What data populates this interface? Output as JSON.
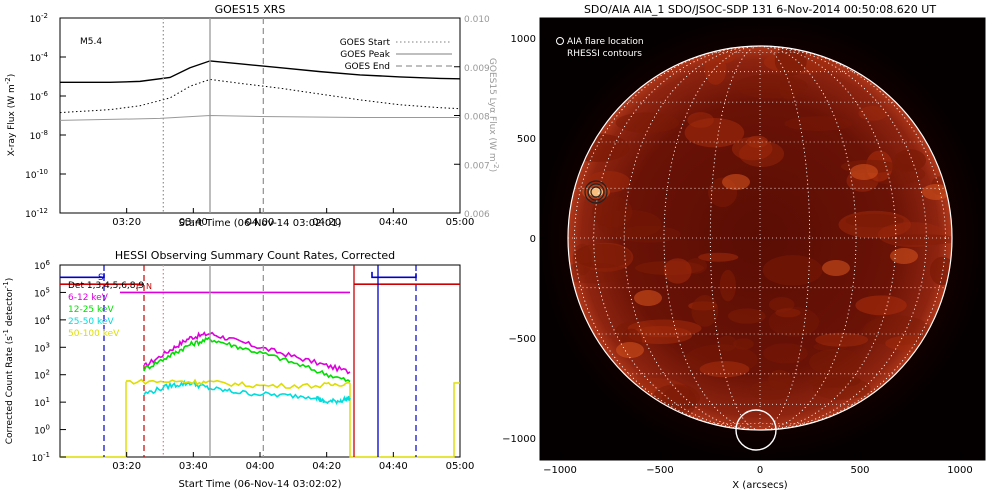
{
  "chart_data": [
    {
      "type": "line",
      "title": "GOES15 XRS",
      "xlabel": "Start Time (06-Nov-14 03:02:01)",
      "ylabel": "X-ray Flux (W m",
      "ylabel_sup": "-2",
      "ylabel_close": ")",
      "ylabel_right": "GOES15 Lyα Flux (W m",
      "ylabel_right_sup": "-2",
      "ylabel_right_close": ")",
      "x_ticks": [
        "03:20",
        "03:40",
        "04:00",
        "04:20",
        "04:40",
        "05:00"
      ],
      "y_ticks_left": [
        {
          "base": "10",
          "exp": "-2"
        },
        {
          "base": "10",
          "exp": "-4"
        },
        {
          "base": "10",
          "exp": "-6"
        },
        {
          "base": "10",
          "exp": "-8"
        },
        {
          "base": "10",
          "exp": "-10"
        },
        {
          "base": "10",
          "exp": "-12"
        }
      ],
      "y_ticks_right": [
        "0.010",
        "0.009",
        "0.008",
        "0.007",
        "0.006"
      ],
      "annotation": "M5.4",
      "legend": [
        {
          "label": "GOES Start",
          "color": "#999999",
          "style": "dotted"
        },
        {
          "label": "GOES Peak",
          "color": "#999999",
          "style": "solid"
        },
        {
          "label": "GOES End",
          "color": "#999999",
          "style": "dashed"
        }
      ],
      "markers": {
        "start": "03:31",
        "peak": "03:45",
        "end": "04:01"
      },
      "series": [
        {
          "color": "#000000",
          "style": "solid",
          "x": [
            3.0,
            3.25,
            3.4,
            3.55,
            3.65,
            3.75,
            3.9,
            4.1,
            4.3,
            4.5,
            4.7,
            4.9,
            5.0
          ],
          "y": [
            -5.3,
            -5.3,
            -5.25,
            -5.05,
            -4.55,
            -4.2,
            -4.35,
            -4.55,
            -4.75,
            -4.92,
            -5.02,
            -5.1,
            -5.12
          ]
        },
        {
          "color": "#000000",
          "style": "dotted",
          "x": [
            3.0,
            3.25,
            3.4,
            3.55,
            3.65,
            3.75,
            3.9,
            4.1,
            4.3,
            4.5,
            4.7,
            4.9,
            5.0
          ],
          "y": [
            -6.85,
            -6.7,
            -6.5,
            -6.1,
            -5.5,
            -5.15,
            -5.35,
            -5.6,
            -5.9,
            -6.2,
            -6.45,
            -6.6,
            -6.65
          ]
        },
        {
          "color": "#999999",
          "style": "solid",
          "x": [
            3.0,
            3.5,
            3.75,
            4.0,
            4.5,
            5.0
          ],
          "y": [
            -7.25,
            -7.15,
            -7.0,
            -7.05,
            -7.1,
            -7.1
          ]
        }
      ]
    },
    {
      "type": "line",
      "title": "HESSI Observing Summary Count Rates, Corrected",
      "xlabel": "Start Time (06-Nov-14 03:02:02)",
      "ylabel": "Corrected Count Rate (s",
      "ylabel_sup": "-1",
      "ylabel_mid": " detector",
      "ylabel_sup2": "-1",
      "ylabel_close": ")",
      "x_ticks": [
        "03:20",
        "03:40",
        "04:00",
        "04:20",
        "04:40",
        "05:00"
      ],
      "y_ticks": [
        {
          "base": "10",
          "exp": "6"
        },
        {
          "base": "10",
          "exp": "5"
        },
        {
          "base": "10",
          "exp": "4"
        },
        {
          "base": "10",
          "exp": "3"
        },
        {
          "base": "10",
          "exp": "2"
        },
        {
          "base": "10",
          "exp": "1"
        },
        {
          "base": "10",
          "exp": "0"
        },
        {
          "base": "10",
          "exp": "-1"
        }
      ],
      "legend": [
        {
          "label": "Det 1,3,4,5,6,8,9",
          "color": "#000000"
        },
        {
          "label": "6-12 keV",
          "color": "#dd00dd"
        },
        {
          "label": "12-25 keV",
          "color": "#00dd00"
        },
        {
          "label": "25-50 keV",
          "color": "#00dddd"
        },
        {
          "label": "50-100 keV",
          "color": "#dddd00"
        }
      ],
      "flag_labels": [
        {
          "text": "S",
          "color": "#0000cc"
        },
        {
          "text": "F",
          "color": "#cc0000"
        },
        {
          "text": "N",
          "color": "#cc0000"
        }
      ],
      "series": [
        {
          "name": "6-12 keV",
          "color": "#dd00dd",
          "x": [
            3.42,
            3.55,
            3.65,
            3.75,
            3.9,
            4.1,
            4.3,
            4.45
          ],
          "y": [
            2.3,
            2.9,
            3.35,
            3.5,
            3.2,
            2.8,
            2.4,
            2.1
          ]
        },
        {
          "name": "12-25 keV",
          "color": "#00dd00",
          "x": [
            3.42,
            3.55,
            3.65,
            3.75,
            3.9,
            4.1,
            4.3,
            4.45
          ],
          "y": [
            2.2,
            2.7,
            3.1,
            3.3,
            3.0,
            2.6,
            2.1,
            1.75
          ]
        },
        {
          "name": "25-50 keV",
          "color": "#00dddd",
          "x": [
            3.42,
            3.55,
            3.65,
            3.75,
            3.9,
            4.1,
            4.28,
            4.32,
            4.4,
            4.45
          ],
          "y": [
            1.3,
            1.6,
            1.7,
            1.5,
            1.35,
            1.25,
            1.2,
            1.0,
            1.05,
            1.15
          ]
        },
        {
          "name": "50-100 keV",
          "color": "#dddd00",
          "x": [
            3.33,
            3.6,
            3.75,
            4.0,
            4.3,
            4.45
          ],
          "y": [
            1.75,
            1.75,
            1.72,
            1.6,
            1.6,
            1.7
          ]
        }
      ]
    },
    {
      "type": "heatmap",
      "title": "SDO/AIA AIA_1 SDO/JSOC-SDP 131   6-Nov-2014 00:50:08.620 UT",
      "xlabel": "X (arcsecs)",
      "ylabel": "",
      "x_ticks": [
        "−1000",
        "−500",
        "0",
        "500",
        "1000"
      ],
      "y_ticks": [
        "1000",
        "500",
        "0",
        "−500",
        "−1000"
      ],
      "legend": [
        {
          "label": "AIA flare location",
          "marker": "circle"
        },
        {
          "label": "RHESSI contours",
          "marker": "none"
        }
      ],
      "flare_location": {
        "x": -820,
        "y": 230
      },
      "marker_circle": {
        "x": -20,
        "y": -960
      },
      "xlim": [
        -1000,
        1000
      ],
      "ylim": [
        -1000,
        1000
      ]
    }
  ]
}
